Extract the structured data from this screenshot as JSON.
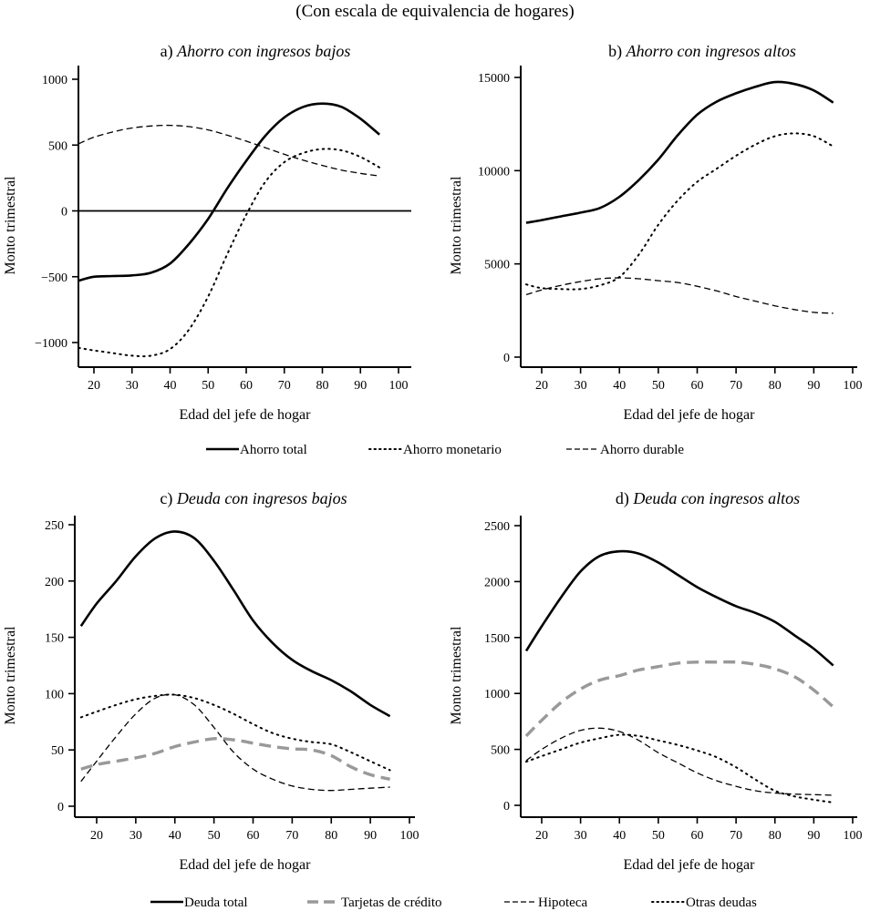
{
  "subtitle": "(Con escala de equivalencia de hogares)",
  "legends": [
    {
      "items": [
        {
          "label": "Ahorro total",
          "style": "solid"
        },
        {
          "label": "Ahorro monetario",
          "style": "dotted"
        },
        {
          "label": "Ahorro durable",
          "style": "dashed"
        }
      ]
    },
    {
      "items": [
        {
          "label": "Deuda total",
          "style": "solid"
        },
        {
          "label": "Tarjetas de crédito",
          "style": "gray-dashed"
        },
        {
          "label": "Hipoteca",
          "style": "dashed"
        },
        {
          "label": "Otras deudas",
          "style": "dotted"
        }
      ]
    }
  ],
  "colors": {
    "black": "#000000",
    "gray": "#999999"
  },
  "chart_data": [
    {
      "type": "line",
      "prefix": "a)",
      "title": "Ahorro con ingresos bajos",
      "xlabel": "Edad del jefe de hogar",
      "ylabel": "Monto trimestral",
      "xlim": [
        15,
        102
      ],
      "ylim": [
        -1230,
        1080
      ],
      "xticks": [
        20,
        30,
        40,
        50,
        60,
        70,
        80,
        90,
        100
      ],
      "yticks": [
        -1000,
        -500,
        0,
        500,
        1000
      ],
      "ytick_labels": [
        "−1000",
        "−500",
        "0",
        "500",
        "1000"
      ],
      "zero_line": true,
      "x": [
        16,
        20,
        25,
        30,
        35,
        40,
        45,
        50,
        55,
        60,
        65,
        70,
        75,
        80,
        85,
        90,
        95
      ],
      "series": [
        {
          "name": "Ahorro total",
          "style": "solid",
          "values": [
            -530,
            -500,
            -495,
            -490,
            -470,
            -400,
            -250,
            -60,
            170,
            380,
            570,
            710,
            790,
            815,
            790,
            700,
            580
          ]
        },
        {
          "name": "Ahorro monetario",
          "style": "dotted",
          "values": [
            -1040,
            -1060,
            -1080,
            -1100,
            -1100,
            -1050,
            -900,
            -650,
            -330,
            -30,
            220,
            370,
            440,
            470,
            460,
            410,
            330
          ]
        },
        {
          "name": "Ahorro durable",
          "style": "dashed",
          "values": [
            510,
            560,
            600,
            630,
            645,
            650,
            640,
            615,
            575,
            530,
            480,
            430,
            385,
            345,
            310,
            285,
            265
          ]
        }
      ]
    },
    {
      "type": "line",
      "prefix": "b)",
      "title": "Ahorro con ingresos altos",
      "xlabel": "Edad del jefe de hogar",
      "ylabel": "Monto trimestral",
      "xlim": [
        15,
        102
      ],
      "ylim": [
        -600,
        15800
      ],
      "xticks": [
        20,
        30,
        40,
        50,
        60,
        70,
        80,
        90,
        100
      ],
      "yticks": [
        0,
        5000,
        10000,
        15000
      ],
      "ytick_labels": [
        "0",
        "5000",
        "10000",
        "15000"
      ],
      "zero_line": false,
      "x": [
        16,
        20,
        25,
        30,
        35,
        40,
        45,
        50,
        55,
        60,
        65,
        70,
        75,
        80,
        85,
        90,
        95
      ],
      "series": [
        {
          "name": "Ahorro total",
          "style": "solid",
          "values": [
            7200,
            7350,
            7550,
            7750,
            8000,
            8600,
            9500,
            10600,
            11900,
            13000,
            13700,
            14150,
            14500,
            14750,
            14650,
            14300,
            13650
          ]
        },
        {
          "name": "Ahorro monetario",
          "style": "dotted",
          "values": [
            3900,
            3700,
            3650,
            3650,
            3850,
            4300,
            5500,
            7100,
            8400,
            9400,
            10100,
            10800,
            11400,
            11850,
            12000,
            11850,
            11300
          ]
        },
        {
          "name": "Ahorro durable",
          "style": "dashed",
          "values": [
            3350,
            3600,
            3850,
            4050,
            4200,
            4250,
            4200,
            4100,
            4000,
            3800,
            3550,
            3250,
            3000,
            2750,
            2550,
            2400,
            2350
          ]
        }
      ]
    },
    {
      "type": "line",
      "prefix": "c)",
      "title": "Deuda con ingresos bajos",
      "xlabel": "Edad del jefe de hogar",
      "ylabel": "Monto trimestral",
      "xlim": [
        15,
        101
      ],
      "ylim": [
        -10,
        262
      ],
      "xticks": [
        20,
        30,
        40,
        50,
        60,
        70,
        80,
        90,
        100
      ],
      "yticks": [
        0,
        50,
        100,
        150,
        200,
        250
      ],
      "ytick_labels": [
        "0",
        "50",
        "100",
        "150",
        "200",
        "250"
      ],
      "zero_line": false,
      "x": [
        16,
        20,
        25,
        30,
        35,
        40,
        45,
        50,
        55,
        60,
        65,
        70,
        75,
        80,
        85,
        90,
        95
      ],
      "series": [
        {
          "name": "Deuda total",
          "style": "solid",
          "values": [
            160,
            180,
            200,
            222,
            238,
            244,
            238,
            218,
            192,
            165,
            145,
            130,
            120,
            112,
            102,
            90,
            80
          ]
        },
        {
          "name": "Tarjetas de crédito",
          "style": "gray-dashed",
          "values": [
            33,
            37,
            40,
            43,
            47,
            53,
            57,
            60,
            59,
            56,
            53,
            51,
            50,
            45,
            35,
            28,
            24
          ]
        },
        {
          "name": "Hipoteca",
          "style": "dashed",
          "values": [
            22,
            40,
            62,
            82,
            96,
            99,
            90,
            70,
            48,
            33,
            24,
            18,
            15,
            14,
            15,
            16,
            17
          ]
        },
        {
          "name": "Otras deudas",
          "style": "dotted",
          "values": [
            79,
            84,
            90,
            95,
            98,
            99,
            96,
            90,
            82,
            73,
            65,
            60,
            57,
            55,
            48,
            40,
            32
          ]
        }
      ]
    },
    {
      "type": "line",
      "prefix": "d)",
      "title": "Deuda con ingresos altos",
      "xlabel": "Edad del jefe de hogar",
      "ylabel": "Monto trimestral",
      "xlim": [
        15,
        102
      ],
      "ylim": [
        -100,
        2630
      ],
      "xticks": [
        20,
        30,
        40,
        50,
        60,
        70,
        80,
        90,
        100
      ],
      "yticks": [
        0,
        500,
        1000,
        1500,
        2000,
        2500
      ],
      "ytick_labels": [
        "0",
        "500",
        "1000",
        "1500",
        "2000",
        "2500"
      ],
      "zero_line": false,
      "x": [
        16,
        20,
        25,
        30,
        35,
        40,
        45,
        50,
        55,
        60,
        65,
        70,
        75,
        80,
        85,
        90,
        95
      ],
      "series": [
        {
          "name": "Deuda total",
          "style": "solid",
          "values": [
            1380,
            1600,
            1860,
            2090,
            2230,
            2270,
            2250,
            2170,
            2060,
            1950,
            1860,
            1780,
            1720,
            1640,
            1520,
            1400,
            1250
          ]
        },
        {
          "name": "Tarjetas de crédito",
          "style": "gray-dashed",
          "values": [
            620,
            760,
            920,
            1040,
            1120,
            1160,
            1210,
            1240,
            1270,
            1280,
            1280,
            1280,
            1260,
            1220,
            1150,
            1030,
            880
          ]
        },
        {
          "name": "Hipoteca",
          "style": "dashed",
          "values": [
            400,
            500,
            600,
            670,
            690,
            660,
            580,
            470,
            380,
            290,
            220,
            170,
            130,
            110,
            100,
            95,
            90
          ]
        },
        {
          "name": "Otras deudas",
          "style": "dotted",
          "values": [
            390,
            440,
            500,
            560,
            600,
            630,
            620,
            580,
            540,
            490,
            430,
            340,
            230,
            130,
            80,
            50,
            25
          ]
        }
      ]
    }
  ]
}
